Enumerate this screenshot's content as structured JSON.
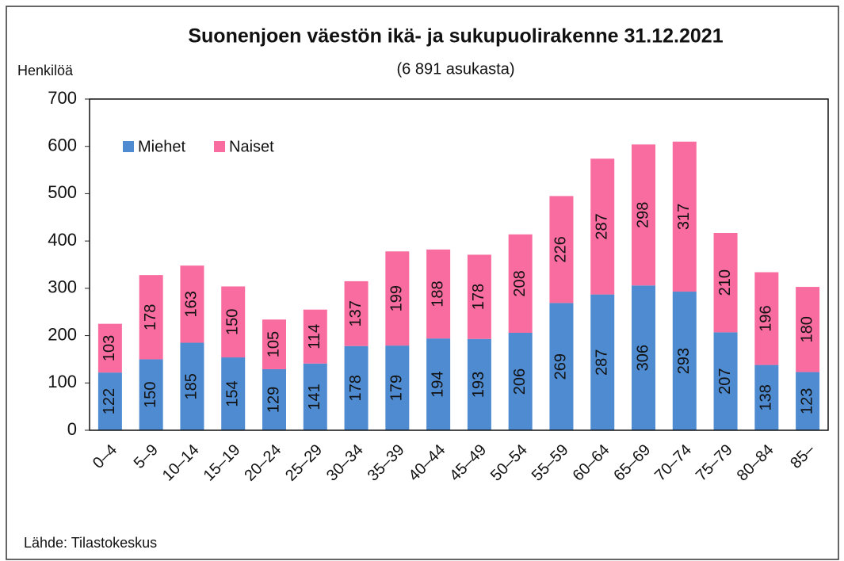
{
  "chart_data": {
    "type": "stacked_bar",
    "title": "Suonenjoen väestön ikä- ja sukupuolirakenne 31.12.2021",
    "subtitle": "(6 891 asukasta)",
    "y_axis_label": "Henkilöä",
    "source": "Lähde: Tilastokeskus",
    "categories": [
      "0–4",
      "5–9",
      "10–14",
      "15–19",
      "20–24",
      "25–29",
      "30–34",
      "35–39",
      "40–44",
      "45–49",
      "50–54",
      "55–59",
      "60–64",
      "65–69",
      "70–74",
      "75–79",
      "80–84",
      "85–"
    ],
    "series": [
      {
        "name": "Miehet",
        "color": "#4f8bd0",
        "values": [
          122,
          150,
          185,
          154,
          129,
          141,
          178,
          179,
          194,
          193,
          206,
          269,
          287,
          306,
          293,
          207,
          138,
          123
        ]
      },
      {
        "name": "Naiset",
        "color": "#f96ca0",
        "values": [
          103,
          178,
          163,
          150,
          105,
          114,
          137,
          199,
          188,
          178,
          208,
          226,
          287,
          298,
          317,
          210,
          196,
          180
        ]
      }
    ],
    "ylim": [
      0,
      700
    ],
    "yticks": [
      0,
      100,
      200,
      300,
      400,
      500,
      600,
      700
    ],
    "grid": false,
    "legend": "top-left"
  }
}
